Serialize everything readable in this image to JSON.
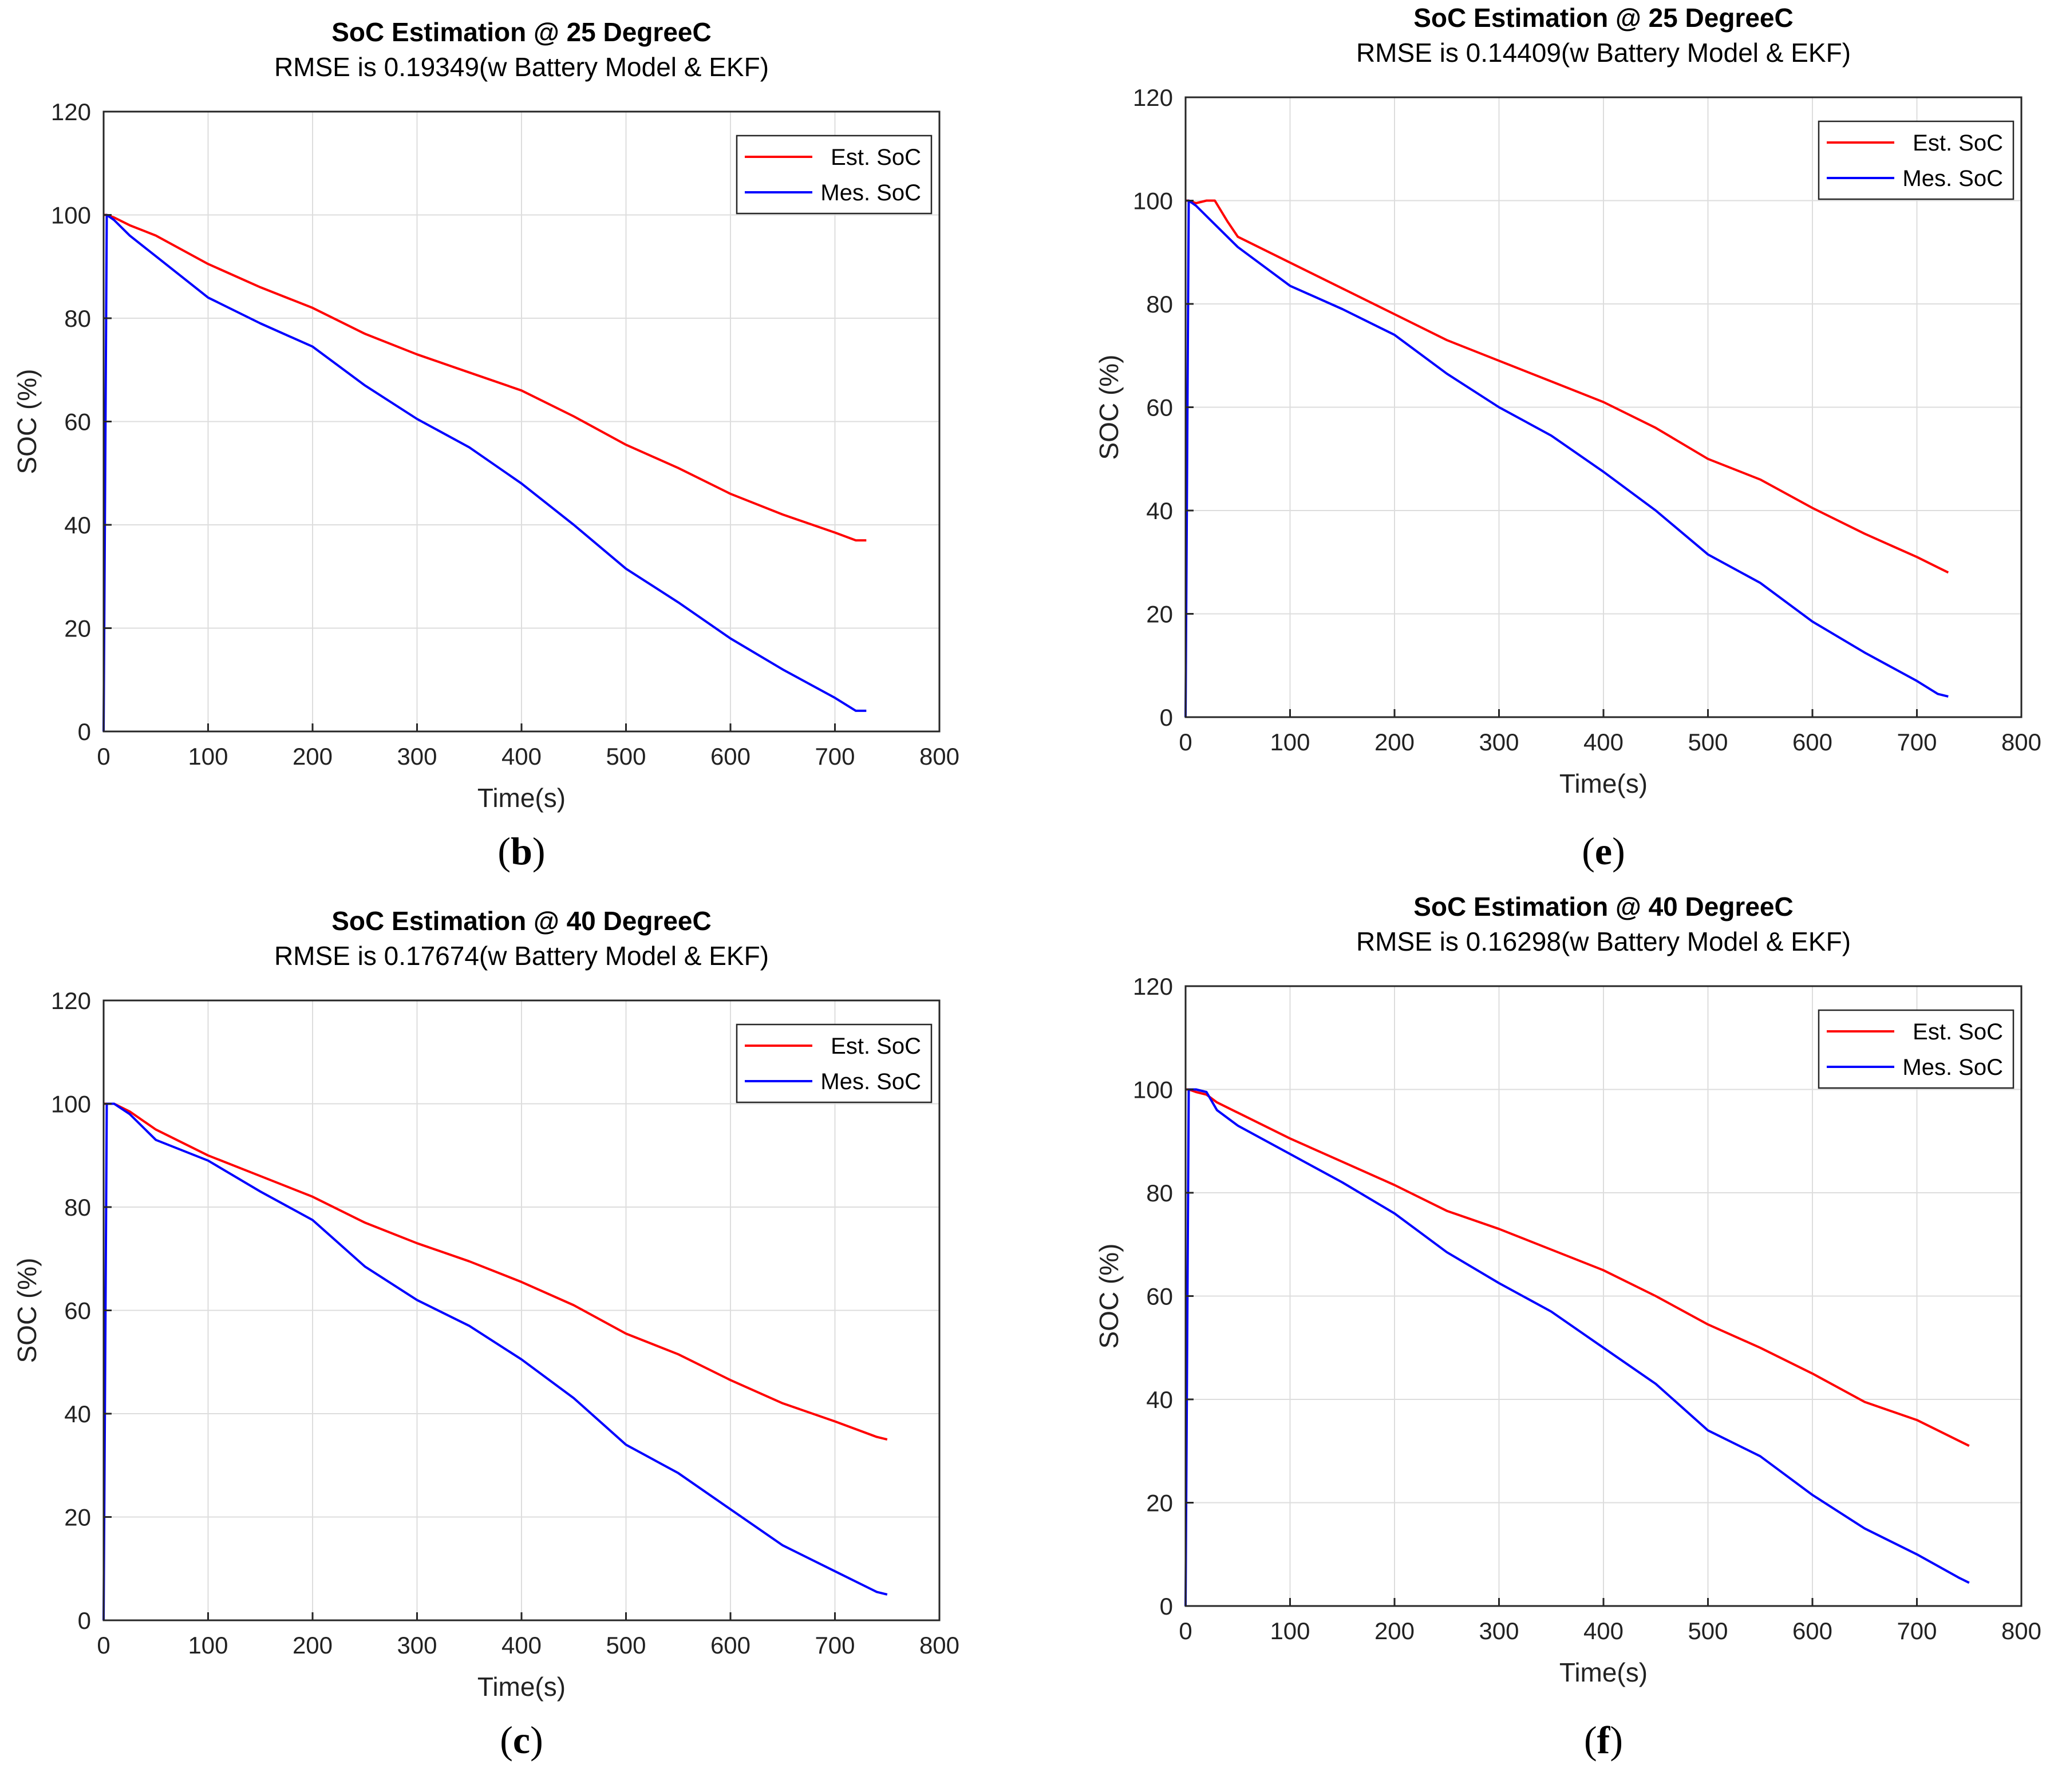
{
  "chart_data": [
    {
      "type": "line",
      "caption_letter": "b",
      "title": "SoC Estimation @ 25 DegreeC",
      "subtitle": "RMSE is 0.19349(w Battery Model & EKF)",
      "xlabel": "Time(s)",
      "ylabel": "SOC (%)",
      "xlim": [
        0,
        800
      ],
      "ylim": [
        0,
        120
      ],
      "xticks": [
        0,
        100,
        200,
        300,
        400,
        500,
        600,
        700,
        800
      ],
      "yticks": [
        0,
        20,
        40,
        60,
        80,
        100,
        120
      ],
      "grid": true,
      "legend_position": "top-right",
      "series": [
        {
          "name": "Est. SoC",
          "color": "#ff0000",
          "x": [
            0,
            3,
            10,
            25,
            50,
            100,
            150,
            200,
            250,
            300,
            350,
            400,
            450,
            500,
            550,
            600,
            650,
            700,
            720,
            730
          ],
          "y": [
            100,
            100,
            99.5,
            98,
            96,
            90.5,
            86,
            82,
            77,
            73,
            69.5,
            66,
            61,
            55.5,
            51,
            46,
            42,
            38.5,
            37,
            37
          ]
        },
        {
          "name": "Mes. SoC",
          "color": "#0000ff",
          "x": [
            0,
            3,
            10,
            25,
            50,
            100,
            150,
            200,
            250,
            300,
            350,
            400,
            450,
            500,
            550,
            600,
            650,
            700,
            720,
            730
          ],
          "y": [
            0,
            100,
            99,
            96,
            92,
            84,
            79,
            74.5,
            67,
            60.5,
            55,
            48,
            40,
            31.5,
            25,
            18,
            12,
            6.5,
            4,
            4
          ]
        }
      ]
    },
    {
      "type": "line",
      "caption_letter": "e",
      "title": "SoC Estimation @ 25 DegreeC",
      "subtitle": "RMSE is 0.14409(w Battery Model & EKF)",
      "xlabel": "Time(s)",
      "ylabel": "SOC (%)",
      "xlim": [
        0,
        800
      ],
      "ylim": [
        0,
        120
      ],
      "xticks": [
        0,
        100,
        200,
        300,
        400,
        500,
        600,
        700,
        800
      ],
      "yticks": [
        0,
        20,
        40,
        60,
        80,
        100,
        120
      ],
      "grid": true,
      "legend_position": "top-right",
      "series": [
        {
          "name": "Est. SoC",
          "color": "#ff0000",
          "x": [
            0,
            3,
            10,
            20,
            28,
            40,
            50,
            100,
            150,
            200,
            250,
            300,
            350,
            400,
            450,
            500,
            550,
            600,
            650,
            700,
            720,
            730
          ],
          "y": [
            100,
            100,
            99.5,
            100,
            100,
            96,
            93,
            88,
            83,
            78,
            73,
            69,
            65,
            61,
            56,
            50,
            46,
            40.5,
            35.5,
            31,
            29,
            28
          ]
        },
        {
          "name": "Mes. SoC",
          "color": "#0000ff",
          "x": [
            0,
            3,
            10,
            25,
            50,
            100,
            150,
            200,
            250,
            300,
            350,
            400,
            450,
            500,
            550,
            600,
            650,
            700,
            720,
            730
          ],
          "y": [
            0,
            100,
            99,
            96,
            91,
            83.5,
            79,
            74,
            66.5,
            60,
            54.5,
            47.5,
            40,
            31.5,
            26,
            18.5,
            12.5,
            7,
            4.5,
            4
          ]
        }
      ]
    },
    {
      "type": "line",
      "caption_letter": "c",
      "title": "SoC Estimation @ 40 DegreeC",
      "subtitle": "RMSE is 0.17674(w Battery Model & EKF)",
      "xlabel": "Time(s)",
      "ylabel": "SOC (%)",
      "xlim": [
        0,
        800
      ],
      "ylim": [
        0,
        120
      ],
      "xticks": [
        0,
        100,
        200,
        300,
        400,
        500,
        600,
        700,
        800
      ],
      "yticks": [
        0,
        20,
        40,
        60,
        80,
        100,
        120
      ],
      "grid": true,
      "legend_position": "top-right",
      "series": [
        {
          "name": "Est. SoC",
          "color": "#ff0000",
          "x": [
            0,
            3,
            10,
            25,
            50,
            100,
            150,
            200,
            250,
            300,
            350,
            400,
            450,
            500,
            550,
            600,
            650,
            700,
            740,
            750
          ],
          "y": [
            100,
            100,
            100,
            98.5,
            95,
            90,
            86,
            82,
            77,
            73,
            69.5,
            65.5,
            61,
            55.5,
            51.5,
            46.5,
            42,
            38.5,
            35.5,
            35
          ]
        },
        {
          "name": "Mes. SoC",
          "color": "#0000ff",
          "x": [
            0,
            3,
            10,
            25,
            50,
            100,
            150,
            200,
            250,
            300,
            350,
            400,
            450,
            500,
            550,
            600,
            650,
            700,
            740,
            750
          ],
          "y": [
            0,
            100,
            100,
            98,
            93,
            89,
            83,
            77.5,
            68.5,
            62,
            57,
            50.5,
            43,
            34,
            28.5,
            21.5,
            14.5,
            9.5,
            5.5,
            5
          ]
        }
      ]
    },
    {
      "type": "line",
      "caption_letter": "f",
      "title": "SoC Estimation @ 40 DegreeC",
      "subtitle": "RMSE is 0.16298(w Battery Model & EKF)",
      "xlabel": "Time(s)",
      "ylabel": "SOC (%)",
      "xlim": [
        0,
        800
      ],
      "ylim": [
        0,
        120
      ],
      "xticks": [
        0,
        100,
        200,
        300,
        400,
        500,
        600,
        700,
        800
      ],
      "yticks": [
        0,
        20,
        40,
        60,
        80,
        100,
        120
      ],
      "grid": true,
      "legend_position": "top-right",
      "series": [
        {
          "name": "Est. SoC",
          "color": "#ff0000",
          "x": [
            0,
            3,
            10,
            20,
            30,
            50,
            100,
            150,
            200,
            250,
            300,
            350,
            400,
            450,
            500,
            550,
            600,
            650,
            700,
            740,
            750
          ],
          "y": [
            100,
            100,
            99.5,
            99,
            97.5,
            95.5,
            90.5,
            86,
            81.5,
            76.5,
            73,
            69,
            65,
            60,
            54.5,
            50,
            45,
            39.5,
            36,
            32,
            31
          ]
        },
        {
          "name": "Mes. SoC",
          "color": "#0000ff",
          "x": [
            0,
            3,
            10,
            20,
            30,
            50,
            100,
            150,
            200,
            250,
            300,
            350,
            400,
            450,
            500,
            550,
            600,
            650,
            700,
            740,
            750
          ],
          "y": [
            0,
            100,
            100,
            99.5,
            96,
            93,
            87.5,
            82,
            76,
            68.5,
            62.5,
            57,
            50,
            43,
            34,
            29,
            21.5,
            15,
            10,
            5.5,
            4.5
          ]
        }
      ]
    }
  ]
}
